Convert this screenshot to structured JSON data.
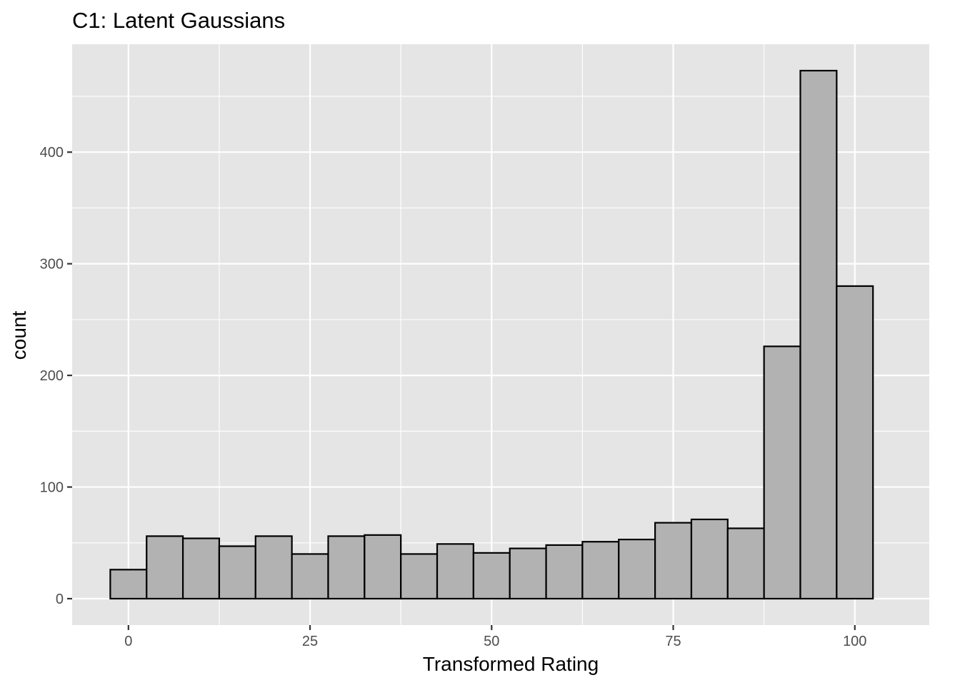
{
  "chart_data": {
    "type": "bar",
    "title": "C1: Latent Gaussians",
    "xlabel": "Transformed Rating",
    "ylabel": "count",
    "bin_width": 5,
    "bins": [
      {
        "center": 0,
        "count": 26
      },
      {
        "center": 5,
        "count": 56
      },
      {
        "center": 10,
        "count": 54
      },
      {
        "center": 15,
        "count": 47
      },
      {
        "center": 20,
        "count": 56
      },
      {
        "center": 25,
        "count": 40
      },
      {
        "center": 30,
        "count": 56
      },
      {
        "center": 35,
        "count": 57
      },
      {
        "center": 40,
        "count": 40
      },
      {
        "center": 45,
        "count": 49
      },
      {
        "center": 50,
        "count": 41
      },
      {
        "center": 55,
        "count": 45
      },
      {
        "center": 60,
        "count": 48
      },
      {
        "center": 65,
        "count": 51
      },
      {
        "center": 70,
        "count": 53
      },
      {
        "center": 75,
        "count": 68
      },
      {
        "center": 80,
        "count": 71
      },
      {
        "center": 85,
        "count": 63
      },
      {
        "center": 90,
        "count": 226
      },
      {
        "center": 95,
        "count": 473
      },
      {
        "center": 100,
        "count": 280
      }
    ],
    "xlim": [
      -7.75,
      110.25
    ],
    "ylim": [
      -23.65,
      496.65
    ],
    "x_ticks": [
      0,
      25,
      50,
      75,
      100
    ],
    "x_tick_labels": [
      "0",
      "25",
      "50",
      "75",
      "100"
    ],
    "y_ticks": [
      0,
      100,
      200,
      300,
      400
    ],
    "y_tick_labels": [
      "0",
      "100",
      "200",
      "300",
      "400"
    ],
    "grid": true,
    "colors": {
      "panel_background": "#e5e5e5",
      "grid": "#ffffff",
      "bar_fill": "#b2b2b2",
      "bar_outline": "#000000",
      "tick_label": "#4d4d4d",
      "tick_mark": "#333333"
    }
  }
}
